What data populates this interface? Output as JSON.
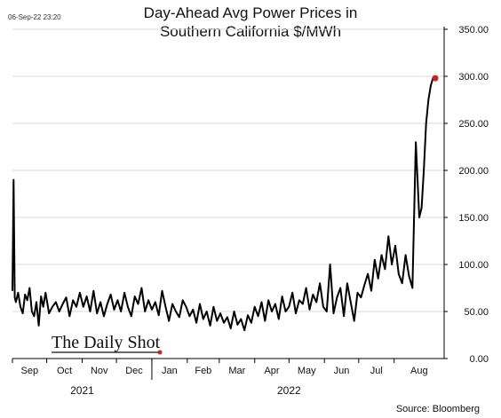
{
  "timestamp": "06-Sep-22 23:20",
  "source": "Source: Bloomberg",
  "watermark": "The Daily Shot",
  "colors": {
    "line": "#000000",
    "last_marker": "#cc2222",
    "grid": "#d9d9d9",
    "brand_accent": "#cc2222"
  },
  "chart_data": {
    "type": "line",
    "title_lines": [
      "Day-Ahead Avg Power Prices in",
      "Southern California $/MWh"
    ],
    "title": "Day-Ahead Avg Power Prices in Southern California $/MWh",
    "xlabel": "",
    "ylabel": "",
    "x_start": "2021-09-01",
    "x_end": "2022-09-06",
    "ylim": [
      0,
      350
    ],
    "y_ticks": [
      "0.00",
      "50.00",
      "100.00",
      "150.00",
      "200.00",
      "250.00",
      "300.00",
      "350.00"
    ],
    "y_axis_position": "right",
    "grid": true,
    "month_labels": [
      {
        "label": "Sep",
        "date": "2021-09-01"
      },
      {
        "label": "Oct",
        "date": "2021-10-01"
      },
      {
        "label": "Nov",
        "date": "2021-11-01"
      },
      {
        "label": "Dec",
        "date": "2021-12-01"
      },
      {
        "label": "Jan",
        "date": "2022-01-01"
      },
      {
        "label": "Feb",
        "date": "2022-02-01"
      },
      {
        "label": "Mar",
        "date": "2022-03-01"
      },
      {
        "label": "Apr",
        "date": "2022-04-01"
      },
      {
        "label": "May",
        "date": "2022-05-01"
      },
      {
        "label": "Jun",
        "date": "2022-06-01"
      },
      {
        "label": "Jul",
        "date": "2022-07-01"
      },
      {
        "label": "Aug",
        "date": "2022-08-01"
      }
    ],
    "year_labels": [
      {
        "label": "2021",
        "date": "2021-11-01"
      },
      {
        "label": "2022",
        "date": "2022-05-01"
      }
    ],
    "last_point": {
      "date": "2022-09-06",
      "value": 298
    },
    "series": [
      {
        "x": [
          "2021-09-01",
          "2021-09-02",
          "2021-09-03",
          "2021-09-04",
          "2021-09-06",
          "2021-09-08",
          "2021-09-10",
          "2021-09-12",
          "2021-09-14",
          "2021-09-16",
          "2021-09-18",
          "2021-09-20",
          "2021-09-22",
          "2021-09-24",
          "2021-09-26",
          "2021-09-28",
          "2021-09-30",
          "2021-10-03",
          "2021-10-06",
          "2021-10-09",
          "2021-10-12",
          "2021-10-15",
          "2021-10-18",
          "2021-10-21",
          "2021-10-24",
          "2021-10-27",
          "2021-10-30",
          "2021-11-02",
          "2021-11-05",
          "2021-11-08",
          "2021-11-11",
          "2021-11-14",
          "2021-11-17",
          "2021-11-20",
          "2021-11-23",
          "2021-11-26",
          "2021-11-29",
          "2021-12-02",
          "2021-12-05",
          "2021-12-08",
          "2021-12-11",
          "2021-12-14",
          "2021-12-17",
          "2021-12-20",
          "2021-12-23",
          "2021-12-26",
          "2021-12-29",
          "2022-01-01",
          "2022-01-04",
          "2022-01-07",
          "2022-01-10",
          "2022-01-13",
          "2022-01-16",
          "2022-01-19",
          "2022-01-22",
          "2022-01-25",
          "2022-01-28",
          "2022-01-31",
          "2022-02-03",
          "2022-02-06",
          "2022-02-09",
          "2022-02-12",
          "2022-02-15",
          "2022-02-18",
          "2022-02-21",
          "2022-02-24",
          "2022-02-27",
          "2022-03-02",
          "2022-03-05",
          "2022-03-08",
          "2022-03-11",
          "2022-03-14",
          "2022-03-17",
          "2022-03-20",
          "2022-03-23",
          "2022-03-26",
          "2022-03-29",
          "2022-04-01",
          "2022-04-04",
          "2022-04-07",
          "2022-04-10",
          "2022-04-13",
          "2022-04-16",
          "2022-04-19",
          "2022-04-22",
          "2022-04-25",
          "2022-04-28",
          "2022-05-01",
          "2022-05-04",
          "2022-05-07",
          "2022-05-10",
          "2022-05-13",
          "2022-05-16",
          "2022-05-19",
          "2022-05-22",
          "2022-05-25",
          "2022-05-28",
          "2022-05-31",
          "2022-06-03",
          "2022-06-06",
          "2022-06-09",
          "2022-06-12",
          "2022-06-15",
          "2022-06-18",
          "2022-06-21",
          "2022-06-24",
          "2022-06-27",
          "2022-06-30",
          "2022-07-03",
          "2022-07-06",
          "2022-07-09",
          "2022-07-12",
          "2022-07-15",
          "2022-07-18",
          "2022-07-21",
          "2022-07-24",
          "2022-07-27",
          "2022-07-30",
          "2022-08-02",
          "2022-08-05",
          "2022-08-08",
          "2022-08-11",
          "2022-08-14",
          "2022-08-17",
          "2022-08-20",
          "2022-08-23",
          "2022-08-25",
          "2022-08-27",
          "2022-08-29",
          "2022-08-31",
          "2022-09-02",
          "2022-09-04",
          "2022-09-06"
        ],
        "values": [
          72,
          190,
          65,
          60,
          70,
          55,
          48,
          68,
          62,
          75,
          50,
          45,
          60,
          35,
          66,
          55,
          70,
          48,
          55,
          60,
          50,
          58,
          65,
          45,
          62,
          55,
          70,
          55,
          66,
          50,
          72,
          48,
          60,
          45,
          58,
          68,
          52,
          62,
          50,
          70,
          55,
          45,
          66,
          58,
          75,
          50,
          62,
          52,
          60,
          46,
          72,
          55,
          40,
          58,
          50,
          44,
          62,
          55,
          45,
          52,
          38,
          58,
          42,
          50,
          35,
          55,
          40,
          48,
          38,
          44,
          32,
          50,
          36,
          42,
          30,
          46,
          38,
          55,
          45,
          60,
          40,
          62,
          50,
          58,
          42,
          66,
          50,
          55,
          70,
          48,
          62,
          58,
          75,
          52,
          68,
          60,
          80,
          55,
          50,
          100,
          48,
          65,
          75,
          45,
          80,
          60,
          40,
          70,
          65,
          78,
          90,
          72,
          105,
          85,
          110,
          95,
          130,
          100,
          120,
          90,
          80,
          110,
          88,
          75,
          230,
          150,
          160,
          200,
          250,
          275,
          290,
          298,
          298
        ]
      }
    ]
  }
}
